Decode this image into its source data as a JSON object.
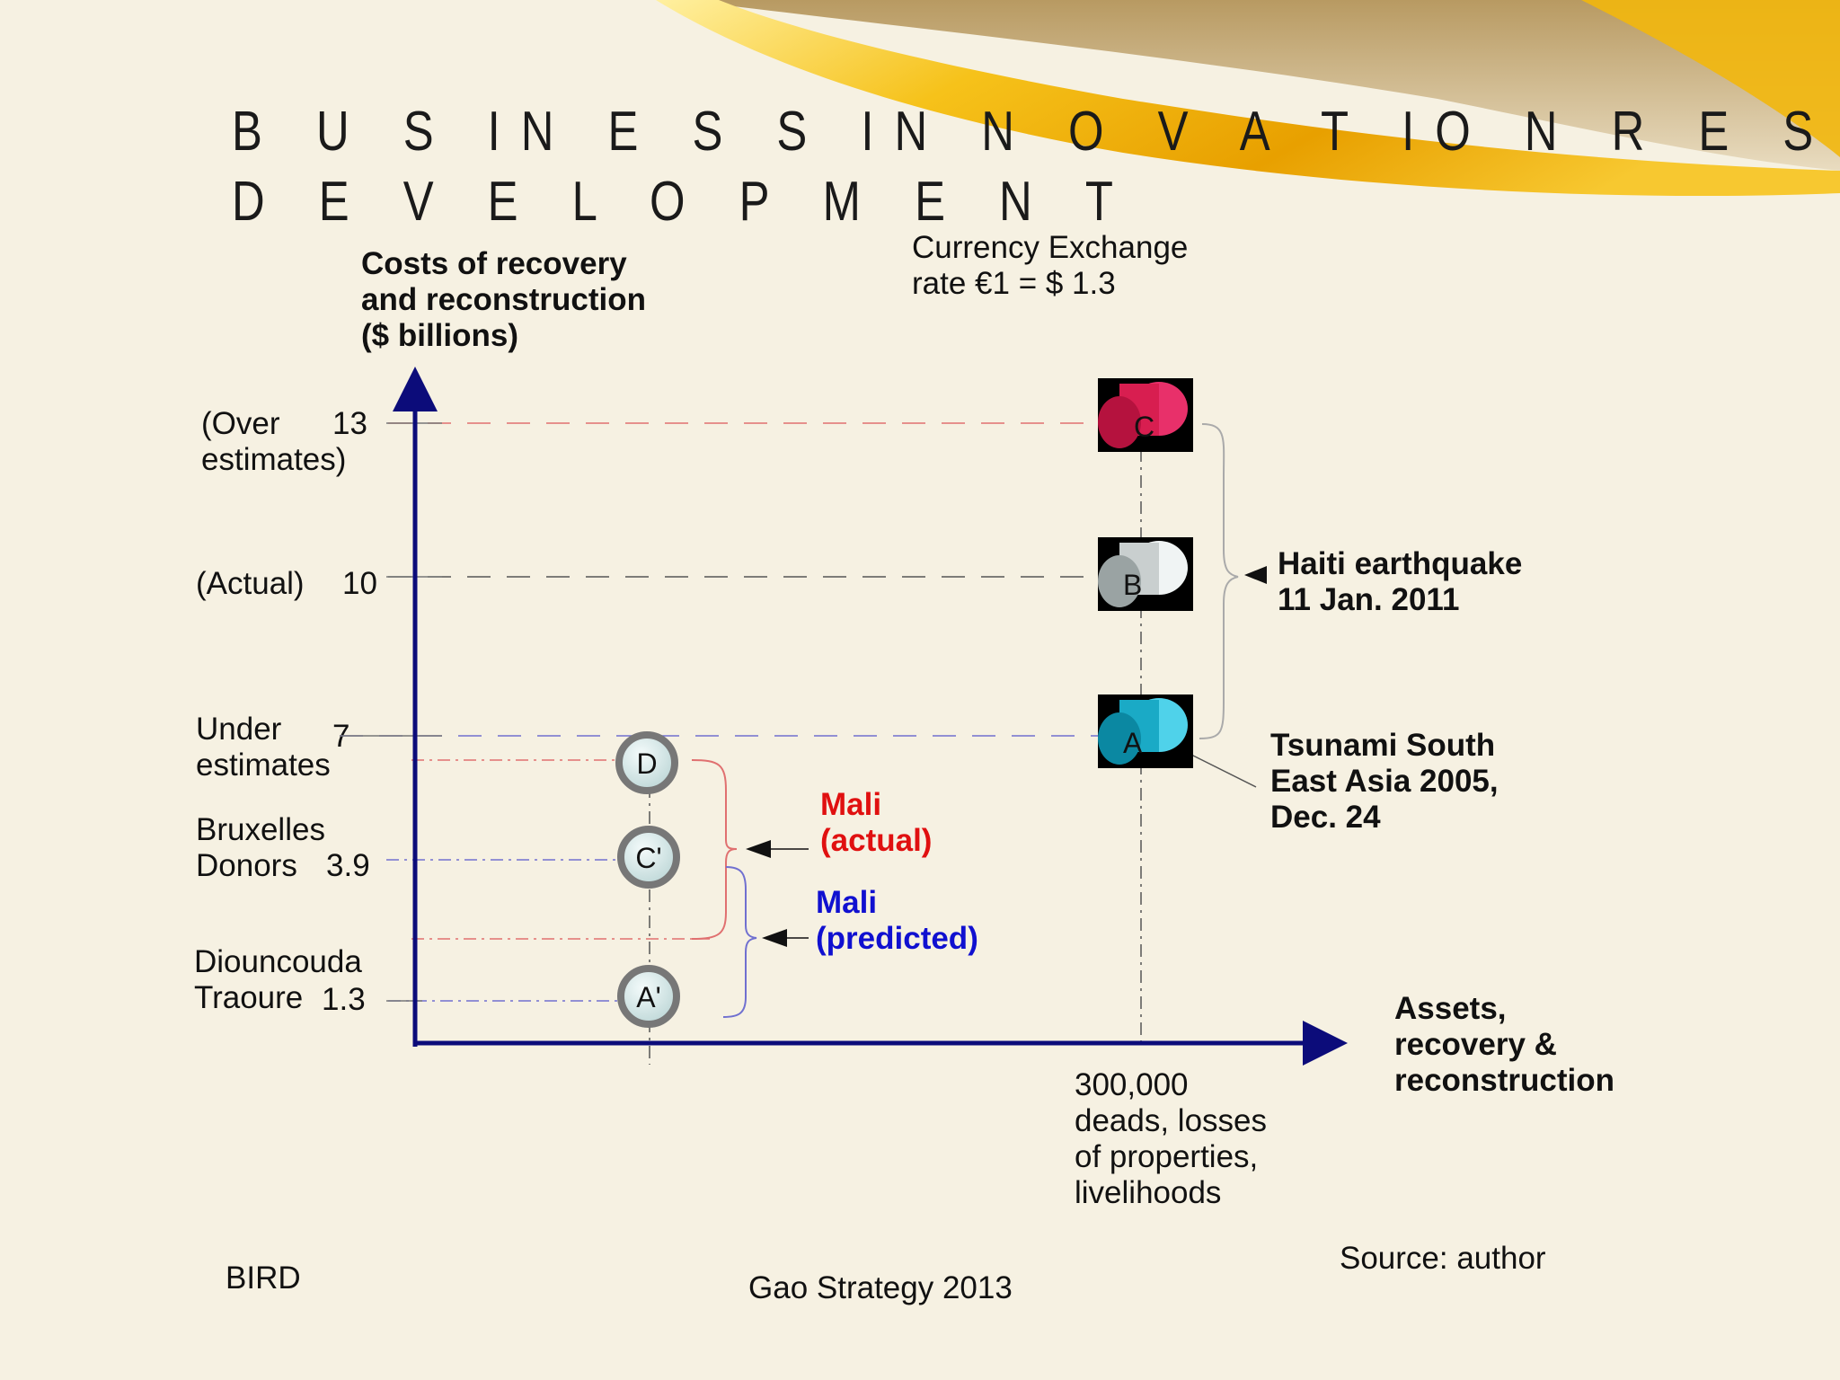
{
  "slide": {
    "title_line1": "B U S IN E S S  IN N O V A T IO N  R E S E A R C H",
    "title_line2": "D E V E L O P M E N T",
    "footer_left": "BIRD",
    "footer_center": "Gao Strategy 2013",
    "source": "Source: author"
  },
  "axes": {
    "y_title": [
      "Costs of  recovery",
      "and reconstruction",
      "($ billions)"
    ],
    "x_title": [
      "Assets,",
      "recovery &",
      "reconstruction"
    ],
    "x_tick": [
      "300,000",
      "deads, losses",
      "of properties,",
      "livelihoods"
    ]
  },
  "exchange_note": [
    "Currency Exchange",
    "rate €1 = $ 1.3"
  ],
  "y_ticks": [
    {
      "label_lines": [
        "(Over",
        "estimates)"
      ],
      "value_text": "13",
      "value": 13
    },
    {
      "label_lines": [
        "(Actual)"
      ],
      "value_text": "10",
      "value": 10
    },
    {
      "label_lines": [
        "Under",
        "estimates"
      ],
      "value_text": "7",
      "value": 7
    },
    {
      "label_lines": [
        "Bruxelles",
        "Donors"
      ],
      "value_text": "3.9",
      "value": 3.9
    },
    {
      "label_lines": [
        "Diouncouda",
        "Traoure"
      ],
      "value_text": "1.3",
      "value": 1.3
    }
  ],
  "haiti_points": [
    {
      "label": "C",
      "value": 13,
      "color": "#d81e50"
    },
    {
      "label": "B",
      "value": 10,
      "color": "#c9cfcf"
    },
    {
      "label": "A",
      "value": 7,
      "color": "#1aaac6"
    }
  ],
  "mali_points": [
    {
      "label": "D"
    },
    {
      "label": "C'"
    },
    {
      "label": "A'"
    }
  ],
  "annotations": {
    "haiti": [
      "Haiti earthquake",
      "11 Jan. 2011"
    ],
    "tsunami": [
      "Tsunami South",
      "East Asia 2005,",
      "Dec. 24"
    ],
    "mali_actual": [
      "Mali",
      "(actual)"
    ],
    "mali_predicted": [
      "Mali",
      "(predicted)"
    ]
  },
  "colors": {
    "axis": "#0c0c7a",
    "red_dash": "#e07070",
    "blue_dash": "#7070d0",
    "gray_dash": "#555555",
    "mali_actual": "#e01010",
    "mali_predicted": "#1010d0"
  }
}
